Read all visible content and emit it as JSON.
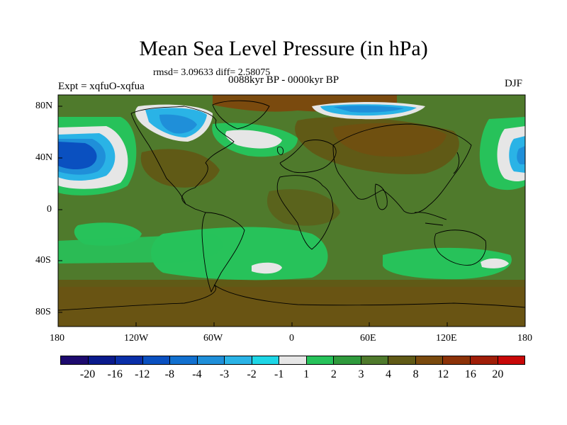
{
  "title": "Mean Sea Level Pressure (in hPa)",
  "stats": "rmsd= 3.09633 diff= 2.58075",
  "period": "0088kyr BP - 0000kyr BP",
  "experiment": "Expt = xqfuO-xqfua",
  "season": "DJF",
  "lat_labels": [
    "80N",
    "40N",
    "0",
    "40S",
    "80S"
  ],
  "lon_labels": [
    "180",
    "120W",
    "60W",
    "0",
    "60E",
    "120E",
    "180"
  ],
  "colorbar": {
    "colors": [
      "#1d0a6e",
      "#0a1a8c",
      "#0a2fa8",
      "#0a50c0",
      "#1270cf",
      "#1f8fd9",
      "#2ab3e6",
      "#1ed6e6",
      "#e6e6e6",
      "#27c25a",
      "#2f9a3c",
      "#4f7a2c",
      "#605a16",
      "#7a4a0e",
      "#8c3208",
      "#a01e08",
      "#c80808"
    ],
    "labels": [
      "-20",
      "-16",
      "-12",
      "-8",
      "-4",
      "-3",
      "-2",
      "-1",
      "1",
      "2",
      "3",
      "4",
      "8",
      "12",
      "16",
      "20"
    ]
  },
  "map_colors": {
    "background": "#4f7a2c",
    "positive_light": "#27c25a",
    "positive_mid": "#2f9a3c",
    "positive_high": "#605a16",
    "positive_higher": "#7a4a0e",
    "near_zero": "#e6e6e6",
    "neg_light": "#2ab3e6",
    "neg_mid": "#1f8fd9",
    "neg_strong": "#0a50c0",
    "neg_deep": "#0a2fa8"
  }
}
